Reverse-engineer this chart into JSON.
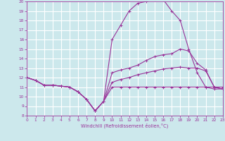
{
  "xlabel": "Windchill (Refroidissement éolien,°C)",
  "bg_color": "#cce8ec",
  "grid_color": "#ffffff",
  "line_color": "#993399",
  "xlim": [
    0,
    23
  ],
  "ylim": [
    8,
    20
  ],
  "xticks": [
    0,
    1,
    2,
    3,
    4,
    5,
    6,
    7,
    8,
    9,
    10,
    11,
    12,
    13,
    14,
    15,
    16,
    17,
    18,
    19,
    20,
    21,
    22,
    23
  ],
  "yticks": [
    8,
    9,
    10,
    11,
    12,
    13,
    14,
    15,
    16,
    17,
    18,
    19,
    20
  ],
  "lines": [
    {
      "x": [
        0,
        1,
        2,
        3,
        4,
        5,
        6,
        7,
        8,
        9,
        10,
        11,
        12,
        13,
        14,
        15,
        16,
        17,
        18,
        19,
        20,
        21,
        22,
        23
      ],
      "y": [
        12,
        11.7,
        11.2,
        11.2,
        11.1,
        11.0,
        10.5,
        9.7,
        8.5,
        9.5,
        11.0,
        11.0,
        11.0,
        11.0,
        11.0,
        11.0,
        11.0,
        11.0,
        11.0,
        11.0,
        11.0,
        11.0,
        11.0,
        11.0
      ]
    },
    {
      "x": [
        0,
        1,
        2,
        3,
        4,
        5,
        6,
        7,
        8,
        9,
        10,
        11,
        12,
        13,
        14,
        15,
        16,
        17,
        18,
        19,
        20,
        21,
        22,
        23
      ],
      "y": [
        12,
        11.7,
        11.2,
        11.2,
        11.1,
        11.0,
        10.5,
        9.7,
        8.5,
        9.5,
        11.5,
        11.8,
        12.0,
        12.3,
        12.5,
        12.7,
        12.9,
        13.0,
        13.1,
        13.0,
        13.0,
        12.7,
        11.0,
        10.8
      ]
    },
    {
      "x": [
        0,
        1,
        2,
        3,
        4,
        5,
        6,
        7,
        8,
        9,
        10,
        11,
        12,
        13,
        14,
        15,
        16,
        17,
        18,
        19,
        20,
        21,
        22,
        23
      ],
      "y": [
        12,
        11.7,
        11.2,
        11.2,
        11.1,
        11.0,
        10.5,
        9.7,
        8.5,
        9.5,
        12.5,
        12.8,
        13.0,
        13.3,
        13.8,
        14.2,
        14.4,
        14.5,
        15.0,
        14.8,
        13.5,
        12.8,
        11.0,
        10.8
      ]
    },
    {
      "x": [
        0,
        1,
        2,
        3,
        4,
        5,
        6,
        7,
        8,
        9,
        10,
        11,
        12,
        13,
        14,
        15,
        16,
        17,
        18,
        19,
        20,
        21,
        22,
        23
      ],
      "y": [
        12,
        11.7,
        11.2,
        11.2,
        11.1,
        11.0,
        10.5,
        9.7,
        8.5,
        9.5,
        16.0,
        17.5,
        19.0,
        19.8,
        20.0,
        20.2,
        20.2,
        19.0,
        18.0,
        15.0,
        12.5,
        11.0,
        10.8,
        10.8
      ]
    }
  ]
}
